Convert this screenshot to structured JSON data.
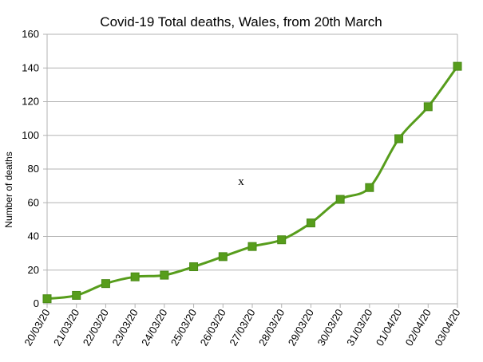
{
  "chart_data": {
    "type": "line",
    "title": "Covid-19 Total deaths, Wales, from 20th March",
    "xlabel": "",
    "ylabel": "Number of deaths",
    "categories": [
      "20/03/20",
      "21/03/20",
      "22/03/20",
      "23/03/20",
      "24/03/20",
      "25/03/20",
      "26/03/20",
      "27/03/20",
      "28/03/20",
      "29/03/20",
      "30/03/20",
      "31/03/20",
      "01/04/20",
      "02/04/20",
      "03/04/20"
    ],
    "series": [
      {
        "name": "Total deaths",
        "values": [
          3,
          5,
          12,
          16,
          17,
          22,
          28,
          34,
          38,
          48,
          62,
          69,
          98,
          117,
          141
        ]
      }
    ],
    "ylim": [
      0,
      160
    ],
    "yticks": [
      0,
      20,
      40,
      60,
      80,
      100,
      120,
      140,
      160
    ],
    "grid": true,
    "annotation": "x",
    "series_color": "#579d1c"
  }
}
